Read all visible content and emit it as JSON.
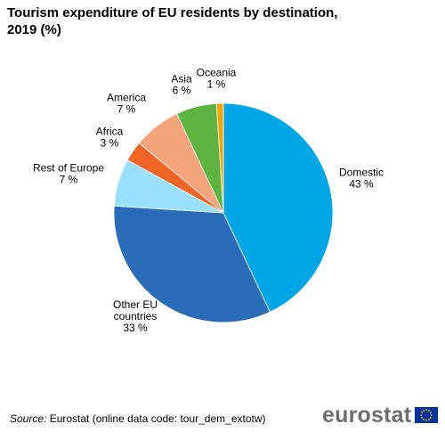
{
  "chart_data": {
    "type": "pie",
    "title_lines": [
      "Tourism expenditure of EU residents by destination,",
      "2019 (%)"
    ],
    "unit_suffix": " %",
    "start": "12 o'clock",
    "direction": "clockwise",
    "slices": [
      {
        "name": "Domestic",
        "value": 43,
        "color": "#00a6e6"
      },
      {
        "name_lines": [
          "Other EU",
          "countries"
        ],
        "value": 33,
        "color": "#2b6cb8"
      },
      {
        "name": "Rest of Europe",
        "value": 7,
        "color": "#99e0ff"
      },
      {
        "name": "Africa",
        "value": 3,
        "color": "#f06425"
      },
      {
        "name": "America",
        "value": 7,
        "color": "#f5a57b"
      },
      {
        "name": "Asia",
        "value": 6,
        "color": "#5fb441"
      },
      {
        "name": "Oceania",
        "value": 1,
        "color": "#f6a400"
      }
    ]
  },
  "footer": {
    "source_key": "Source:",
    "source_text": " Eurostat (online data code: tour_dem_extotw)"
  },
  "logo": {
    "wordmark": "eurostat",
    "flag_color": "#003399",
    "star_color": "#ffcc00"
  }
}
